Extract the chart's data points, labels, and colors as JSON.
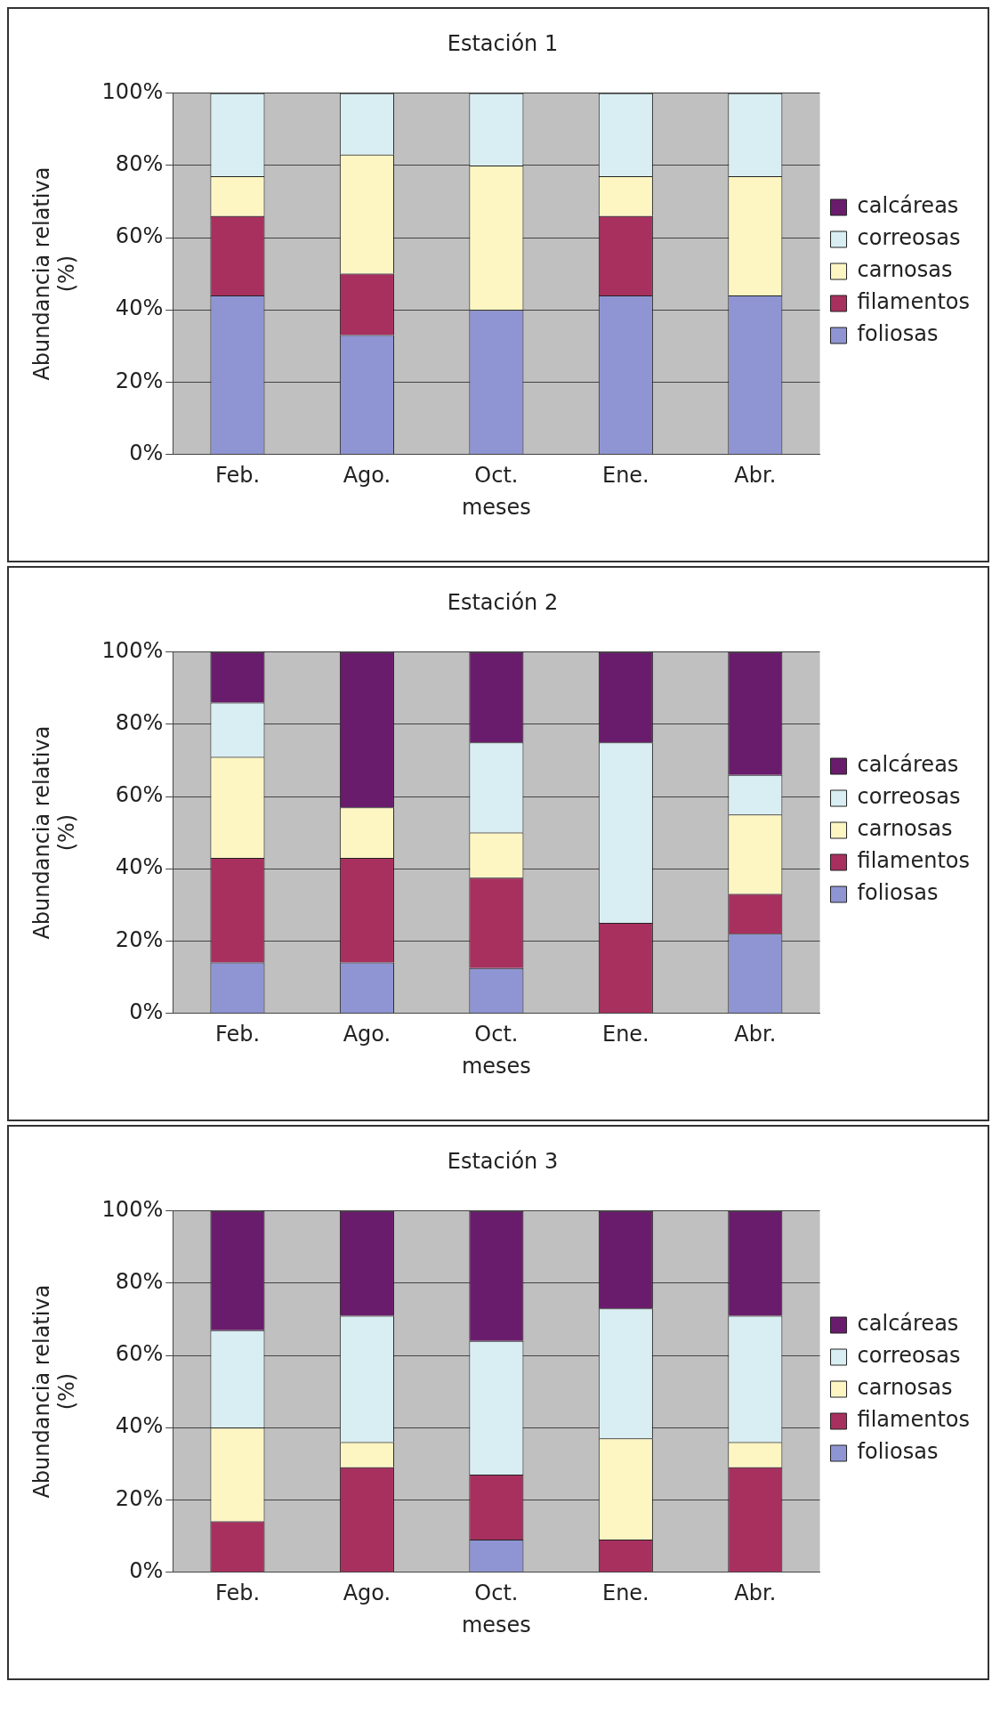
{
  "chart_data": [
    {
      "type": "bar",
      "title": "Estación 1",
      "xlabel": "meses",
      "ylabel": "Abundancia relativa (%)",
      "categories": [
        "Feb.",
        "Ago.",
        "Oct.",
        "Ene.",
        "Abr."
      ],
      "stacked": true,
      "ylim": [
        0,
        100
      ],
      "yticks": [
        {
          "value": 0,
          "label": "0%"
        },
        {
          "value": 20,
          "label": "20%"
        },
        {
          "value": 40,
          "label": "40%"
        },
        {
          "value": 60,
          "label": "60%"
        },
        {
          "value": 80,
          "label": "80%"
        },
        {
          "value": 100,
          "label": "100%"
        }
      ],
      "grid": "y",
      "legend": "right",
      "series": [
        {
          "name": "foliosas",
          "color": "#8f95d2",
          "values": [
            44,
            33,
            40,
            44,
            44
          ]
        },
        {
          "name": "filamentos",
          "color": "#a8305f",
          "values": [
            22,
            17,
            0,
            22,
            0
          ]
        },
        {
          "name": "carnosas",
          "color": "#fdf6c3",
          "values": [
            11,
            33,
            40,
            11,
            33
          ]
        },
        {
          "name": "correosas",
          "color": "#d9eef2",
          "values": [
            23,
            17,
            20,
            23,
            23
          ]
        },
        {
          "name": "calcáreas",
          "color": "#6a1c6c",
          "values": [
            0,
            0,
            0,
            0,
            0
          ]
        }
      ]
    },
    {
      "type": "bar",
      "title": "Estación 2",
      "xlabel": "meses",
      "ylabel": "Abundancia relativa (%)",
      "categories": [
        "Feb.",
        "Ago.",
        "Oct.",
        "Ene.",
        "Abr."
      ],
      "stacked": true,
      "ylim": [
        0,
        100
      ],
      "yticks": [
        {
          "value": 0,
          "label": "0%"
        },
        {
          "value": 20,
          "label": "20%"
        },
        {
          "value": 40,
          "label": "40%"
        },
        {
          "value": 60,
          "label": "60%"
        },
        {
          "value": 80,
          "label": "80%"
        },
        {
          "value": 100,
          "label": "100%"
        }
      ],
      "grid": "y",
      "legend": "right",
      "series": [
        {
          "name": "foliosas",
          "color": "#8f95d2",
          "values": [
            14,
            14,
            12.5,
            0,
            22
          ]
        },
        {
          "name": "filamentos",
          "color": "#a8305f",
          "values": [
            29,
            29,
            25,
            25,
            11
          ]
        },
        {
          "name": "carnosas",
          "color": "#fdf6c3",
          "values": [
            28,
            14,
            12.5,
            0,
            22
          ]
        },
        {
          "name": "correosas",
          "color": "#d9eef2",
          "values": [
            15,
            0,
            25,
            50,
            11
          ]
        },
        {
          "name": "calcáreas",
          "color": "#6a1c6c",
          "values": [
            14,
            43,
            25,
            25,
            34
          ]
        }
      ]
    },
    {
      "type": "bar",
      "title": "Estación 3",
      "xlabel": "meses",
      "ylabel": "Abundancia relativa (%)",
      "categories": [
        "Feb.",
        "Ago.",
        "Oct.",
        "Ene.",
        "Abr."
      ],
      "stacked": true,
      "ylim": [
        0,
        100
      ],
      "yticks": [
        {
          "value": 0,
          "label": "0%"
        },
        {
          "value": 20,
          "label": "20%"
        },
        {
          "value": 40,
          "label": "40%"
        },
        {
          "value": 60,
          "label": "60%"
        },
        {
          "value": 80,
          "label": "80%"
        },
        {
          "value": 100,
          "label": "100%"
        }
      ],
      "grid": "y",
      "legend": "right",
      "series": [
        {
          "name": "foliosas",
          "color": "#8f95d2",
          "values": [
            0,
            0,
            9,
            0,
            0
          ]
        },
        {
          "name": "filamentos",
          "color": "#a8305f",
          "values": [
            14,
            29,
            18,
            9,
            29
          ]
        },
        {
          "name": "carnosas",
          "color": "#fdf6c3",
          "values": [
            26,
            7,
            0,
            28,
            7
          ]
        },
        {
          "name": "correosas",
          "color": "#d9eef2",
          "values": [
            27,
            35,
            37,
            36,
            35
          ]
        },
        {
          "name": "calcáreas",
          "color": "#6a1c6c",
          "values": [
            33,
            29,
            36,
            27,
            29
          ]
        }
      ]
    }
  ]
}
